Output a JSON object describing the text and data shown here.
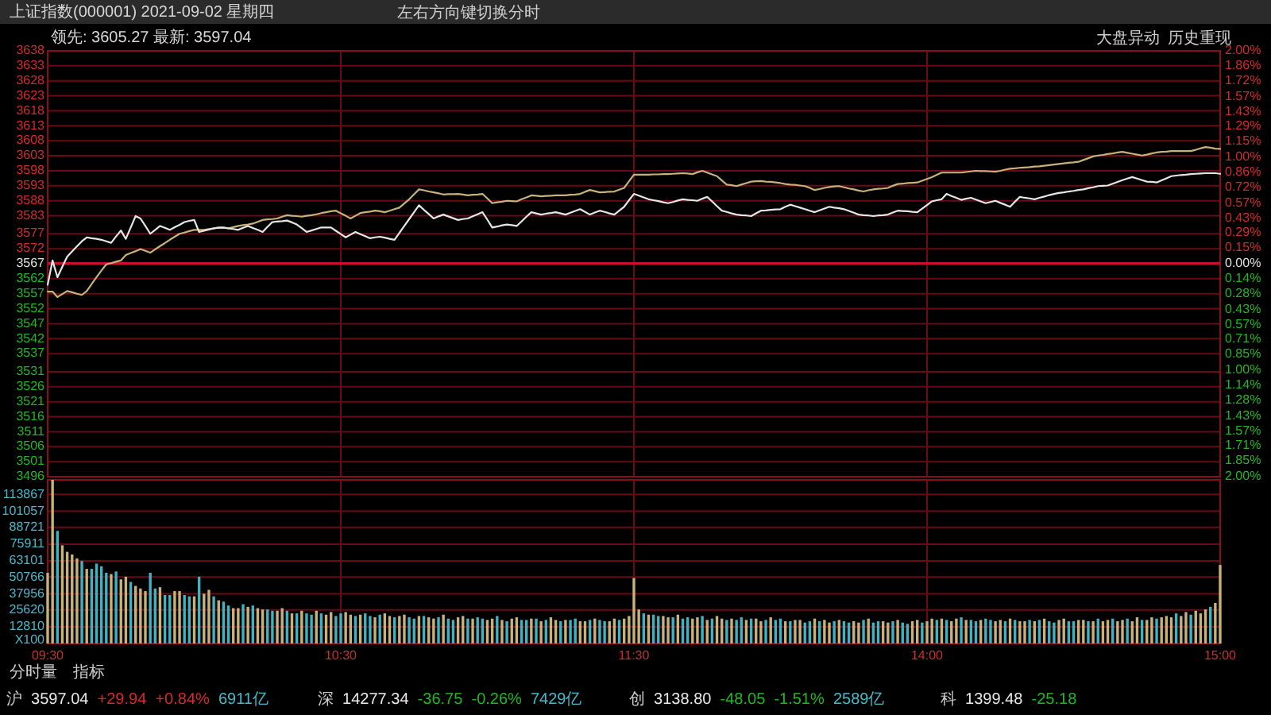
{
  "chart_data": [
    {
      "type": "line",
      "title": "上证指数(000001) 2021-09-02 星期四",
      "subtitle": "领先: 3605.27  最新: 3597.04",
      "categories": [
        null,
        null,
        null,
        null,
        null,
        null,
        null,
        null,
        null,
        null,
        null,
        null,
        null,
        null,
        null,
        null,
        null,
        null,
        null,
        null,
        null,
        null,
        null,
        null,
        null,
        null,
        null,
        null,
        null,
        null,
        null,
        null,
        null,
        null,
        null,
        null,
        null,
        null,
        null,
        null,
        null,
        null,
        null,
        null,
        null,
        null,
        null,
        null,
        null,
        null,
        null,
        null,
        null,
        null,
        null,
        null,
        null,
        null,
        null,
        null,
        null,
        null,
        null,
        null,
        null,
        null,
        null,
        null,
        null,
        null,
        null,
        null,
        null,
        null,
        null,
        null,
        null,
        null,
        null,
        null,
        null,
        null,
        null,
        null,
        null,
        null,
        null,
        null,
        null,
        null,
        null,
        null,
        null,
        null,
        null,
        null,
        null,
        null,
        null,
        null,
        null,
        null,
        null,
        null,
        null,
        null,
        null,
        null,
        null,
        null,
        null,
        null,
        null,
        null,
        null,
        null,
        null,
        null,
        null,
        null,
        null,
        null,
        null,
        null,
        null,
        null,
        null,
        null,
        null,
        null,
        null,
        null,
        null,
        null,
        null,
        null,
        null,
        null,
        null,
        null,
        null,
        null,
        null,
        null,
        null,
        null,
        null,
        null,
        null,
        null,
        null,
        null,
        null,
        null,
        null,
        null,
        null,
        null,
        null,
        null,
        null,
        null,
        null,
        null,
        null,
        null,
        null,
        null,
        null,
        null,
        null,
        null,
        null,
        null,
        null,
        null,
        null,
        null,
        null,
        null,
        null,
        null,
        null,
        null,
        null,
        null,
        null,
        null,
        null,
        null,
        null,
        null,
        null,
        null,
        null,
        null,
        null,
        null,
        null,
        null,
        null,
        null,
        null,
        null,
        null,
        null,
        null,
        null,
        null,
        null,
        null,
        null,
        null,
        null,
        null,
        null,
        null,
        null,
        null,
        null,
        null,
        null,
        null,
        null,
        null,
        null,
        null,
        null,
        null,
        null,
        null,
        null,
        null,
        null,
        null,
        null,
        null,
        null,
        null,
        null,
        null
      ],
      "ylim": [
        3496,
        3638
      ],
      "yticks": [
        3638,
        3633,
        3628,
        3623,
        3618,
        3613,
        3608,
        3603,
        3598,
        3593,
        3588,
        3583,
        3577,
        3572,
        3567,
        3562,
        3557,
        3552,
        3547,
        3542,
        3537,
        3531,
        3526,
        3521,
        3516,
        3511,
        3506,
        3501,
        3496
      ],
      "y2lim": [
        -2.0,
        2.0
      ],
      "y2ticks": [
        {
          "value": 2.0,
          "label": "2.00%"
        },
        {
          "value": 1.86,
          "label": "1.86%"
        },
        {
          "value": 1.72,
          "label": "1.72%"
        },
        {
          "value": 1.57,
          "label": "1.57%"
        },
        {
          "value": 1.43,
          "label": "1.43%"
        },
        {
          "value": 1.29,
          "label": "1.29%"
        },
        {
          "value": 1.15,
          "label": "1.15%"
        },
        {
          "value": 1.0,
          "label": "1.00%"
        },
        {
          "value": 0.86,
          "label": "0.86%"
        },
        {
          "value": 0.72,
          "label": "0.72%"
        },
        {
          "value": 0.57,
          "label": "0.57%"
        },
        {
          "value": 0.43,
          "label": "0.43%"
        },
        {
          "value": 0.29,
          "label": "0.29%"
        },
        {
          "value": 0.15,
          "label": "0.15%"
        },
        {
          "value": 0,
          "label": "0.00%"
        },
        {
          "value": -0.14,
          "label": "0.14%"
        },
        {
          "value": -0.28,
          "label": "0.28%"
        },
        {
          "value": -0.43,
          "label": "0.43%"
        },
        {
          "value": -0.57,
          "label": "0.57%"
        },
        {
          "value": -0.71,
          "label": "0.71%"
        },
        {
          "value": -0.85,
          "label": "0.85%"
        },
        {
          "value": -1.0,
          "label": "1.00%"
        },
        {
          "value": -1.14,
          "label": "1.14%"
        },
        {
          "value": -1.28,
          "label": "1.28%"
        },
        {
          "value": -1.43,
          "label": "1.43%"
        },
        {
          "value": -1.57,
          "label": "1.57%"
        },
        {
          "value": -1.71,
          "label": "1.71%"
        },
        {
          "value": -1.85,
          "label": "1.85%"
        },
        {
          "value": -2.0,
          "label": "2.00%"
        }
      ],
      "grid": true,
      "ref_lines": [
        {
          "axis": "y",
          "value": 3567.1,
          "color": "#c8102e"
        }
      ],
      "annotations": [
        "左右方向键切换分时",
        "大盘异动",
        "历史重现"
      ],
      "series": [
        {
          "color": "#c8b27a",
          "values": [
            3557.7,
            3557.7,
            3555.9,
            3556.9,
            3557.9,
            3557.5,
            3557.0,
            3556.6,
            3557.9,
            3560.2,
            3562.5,
            3564.7,
            3566.8,
            3567.2,
            3567.7,
            3568.1,
            3569.9,
            3570.6,
            3571.2,
            3571.9,
            3571.3,
            3570.7,
            3571.8,
            3572.9,
            3573.9,
            3575.0,
            3576.0,
            3577.0,
            3577.4,
            3577.9,
            3578.3,
            3578.3,
            3578.3,
            3578.6,
            3578.8,
            3579.1,
            3579.0,
            3578.8,
            3579.2,
            3579.6,
            3579.9,
            3580.1,
            3580.4,
            3581.0,
            3581.6,
            3581.8,
            3581.9,
            3582.1,
            3582.7,
            3583.2,
            3583.0,
            3582.9,
            3582.7,
            3583.0,
            3583.2,
            3583.5,
            3583.9,
            3584.2,
            3584.5,
            3584.7,
            3583.8,
            3583.0,
            3582.1,
            3583.0,
            3583.9,
            3584.2,
            3584.4,
            3584.7,
            3584.5,
            3584.2,
            3584.7,
            3585.2,
            3585.7,
            3587.1,
            3588.5,
            3590.2,
            3591.8,
            3591.5,
            3591.1,
            3590.8,
            3590.5,
            3590.1,
            3590.2,
            3590.2,
            3590.3,
            3590.1,
            3589.8,
            3590.0,
            3590.1,
            3590.3,
            3588.8,
            3587.2,
            3587.5,
            3587.7,
            3588.0,
            3587.9,
            3587.8,
            3588.5,
            3589.1,
            3589.8,
            3589.7,
            3589.5,
            3589.6,
            3589.7,
            3589.8,
            3589.8,
            3589.8,
            3590.0,
            3590.1,
            3590.3,
            3591.0,
            3591.6,
            3591.2,
            3590.8,
            3590.9,
            3591.0,
            3591.1,
            3591.7,
            3592.3,
            3594.5,
            3596.7,
            3596.7,
            3596.7,
            3596.7,
            3596.8,
            3596.8,
            3596.9,
            3596.9,
            3597.0,
            3597.1,
            3597.2,
            3597.1,
            3596.9,
            3597.5,
            3598.0,
            3597.4,
            3596.8,
            3596.2,
            3594.8,
            3593.4,
            3593.2,
            3592.9,
            3593.4,
            3593.9,
            3594.4,
            3594.5,
            3594.6,
            3594.4,
            3594.3,
            3594.1,
            3593.9,
            3593.6,
            3593.4,
            3593.3,
            3593.1,
            3592.9,
            3592.3,
            3591.6,
            3591.9,
            3592.3,
            3592.6,
            3592.8,
            3592.9,
            3592.5,
            3592.1,
            3591.8,
            3591.4,
            3591.1,
            3591.5,
            3591.8,
            3592.0,
            3592.1,
            3592.3,
            3593.0,
            3593.6,
            3593.7,
            3593.9,
            3594.0,
            3594.1,
            3594.7,
            3595.3,
            3595.9,
            3596.7,
            3597.4,
            3597.4,
            3597.4,
            3597.4,
            3597.4,
            3597.6,
            3597.8,
            3598.0,
            3597.9,
            3597.9,
            3597.8,
            3597.7,
            3598.0,
            3598.4,
            3598.7,
            3598.8,
            3599.0,
            3599.1,
            3599.2,
            3599.4,
            3599.5,
            3599.7,
            3599.9,
            3600.1,
            3600.3,
            3600.5,
            3600.7,
            3600.8,
            3601.0,
            3601.6,
            3602.2,
            3602.8,
            3603.1,
            3603.3,
            3603.6,
            3603.8,
            3604.1,
            3604.3,
            3604.0,
            3603.7,
            3603.4,
            3603.1,
            3603.4,
            3603.8,
            3604.1,
            3604.3,
            3604.4,
            3604.6,
            3604.6,
            3604.6,
            3604.6,
            3604.6,
            3605.0,
            3605.5,
            3605.9,
            3605.7,
            3605.4,
            3605.3
          ]
        },
        {
          "color": "#e6e6e6",
          "values": [
            3560.0,
            3568.1,
            3562.5,
            3566.0,
            3569.4,
            3571.1,
            3572.8,
            3574.5,
            3575.8,
            3575.5,
            3575.3,
            3575.0,
            3574.5,
            3574.0,
            3576.1,
            3578.1,
            3575.3,
            3579.1,
            3582.9,
            3582.1,
            3579.6,
            3577.0,
            3578.3,
            3579.6,
            3579.0,
            3578.3,
            3579.2,
            3580.0,
            3580.9,
            3581.3,
            3581.6,
            3577.6,
            3578.0,
            3578.4,
            3578.8,
            3579.0,
            3579.1,
            3578.8,
            3578.6,
            3578.3,
            3579.0,
            3579.6,
            3578.9,
            3578.3,
            3577.6,
            3579.3,
            3580.9,
            3581.1,
            3581.2,
            3581.4,
            3580.8,
            3580.1,
            3578.9,
            3577.6,
            3578.1,
            3578.6,
            3579.1,
            3579.1,
            3579.1,
            3578.0,
            3576.9,
            3575.8,
            3576.7,
            3577.6,
            3576.9,
            3576.2,
            3575.5,
            3575.8,
            3576.0,
            3575.7,
            3575.3,
            3575.0,
            3577.3,
            3579.6,
            3581.9,
            3584.2,
            3586.5,
            3585.0,
            3583.6,
            3582.1,
            3582.8,
            3583.4,
            3582.8,
            3582.2,
            3581.6,
            3581.9,
            3582.1,
            3582.8,
            3583.5,
            3584.2,
            3581.7,
            3579.1,
            3579.4,
            3579.8,
            3580.1,
            3579.9,
            3579.6,
            3581.1,
            3582.7,
            3584.2,
            3583.8,
            3583.4,
            3583.7,
            3583.9,
            3584.2,
            3583.8,
            3583.4,
            3584.0,
            3584.6,
            3585.2,
            3584.3,
            3583.4,
            3584.1,
            3584.7,
            3584.3,
            3583.8,
            3583.4,
            3584.7,
            3586.0,
            3588.2,
            3590.3,
            3589.7,
            3589.1,
            3588.5,
            3588.2,
            3587.9,
            3587.5,
            3587.2,
            3587.6,
            3588.1,
            3588.5,
            3588.3,
            3588.2,
            3588.0,
            3588.7,
            3589.3,
            3587.8,
            3586.2,
            3584.7,
            3584.3,
            3583.8,
            3583.4,
            3583.2,
            3583.1,
            3582.9,
            3583.8,
            3584.7,
            3584.8,
            3585.0,
            3585.1,
            3585.2,
            3586.0,
            3586.7,
            3586.2,
            3585.7,
            3585.2,
            3584.7,
            3584.2,
            3584.8,
            3585.4,
            3586.0,
            3585.7,
            3585.5,
            3585.2,
            3584.6,
            3584.0,
            3583.4,
            3583.2,
            3583.1,
            3582.9,
            3583.1,
            3583.2,
            3583.4,
            3584.1,
            3584.7,
            3584.6,
            3584.5,
            3584.3,
            3584.2,
            3585.4,
            3586.6,
            3587.8,
            3588.2,
            3588.5,
            3590.3,
            3589.6,
            3589.0,
            3588.3,
            3588.7,
            3589.0,
            3588.4,
            3587.8,
            3587.2,
            3587.6,
            3588.0,
            3587.3,
            3586.7,
            3586.0,
            3587.7,
            3589.3,
            3589.0,
            3588.8,
            3588.5,
            3589.0,
            3589.4,
            3589.9,
            3590.3,
            3590.6,
            3590.8,
            3591.1,
            3591.3,
            3591.6,
            3591.8,
            3592.2,
            3592.5,
            3592.9,
            3593.0,
            3593.1,
            3593.7,
            3594.3,
            3594.9,
            3595.4,
            3595.9,
            3595.4,
            3594.9,
            3594.4,
            3594.3,
            3594.1,
            3594.8,
            3595.5,
            3596.2,
            3596.4,
            3596.6,
            3596.7,
            3596.9,
            3597.0,
            3597.1,
            3597.2,
            3597.2,
            3597.2,
            3597.0
          ]
        }
      ]
    },
    {
      "type": "bar",
      "ylabel": "X100",
      "categories": [
        "09:30",
        null,
        null,
        null,
        null,
        null,
        null,
        null,
        null,
        null,
        null,
        null,
        null,
        null,
        null,
        null,
        null,
        null,
        null,
        null,
        null,
        null,
        null,
        null,
        null,
        null,
        null,
        null,
        null,
        null,
        null,
        null,
        null,
        null,
        null,
        null,
        null,
        null,
        null,
        null,
        null,
        null,
        null,
        null,
        null,
        null,
        null,
        null,
        null,
        null,
        null,
        null,
        null,
        null,
        null,
        null,
        null,
        null,
        null,
        null,
        "10:30",
        null,
        null,
        null,
        null,
        null,
        null,
        null,
        null,
        null,
        null,
        null,
        null,
        null,
        null,
        null,
        null,
        null,
        null,
        null,
        null,
        null,
        null,
        null,
        null,
        null,
        null,
        null,
        null,
        null,
        null,
        null,
        null,
        null,
        null,
        null,
        null,
        null,
        null,
        null,
        null,
        null,
        null,
        null,
        null,
        null,
        null,
        null,
        null,
        null,
        null,
        null,
        null,
        null,
        null,
        null,
        null,
        null,
        null,
        null,
        "11:30",
        null,
        null,
        null,
        null,
        null,
        null,
        null,
        null,
        null,
        null,
        null,
        null,
        null,
        null,
        null,
        null,
        null,
        null,
        null,
        null,
        null,
        null,
        null,
        null,
        null,
        null,
        null,
        null,
        null,
        null,
        null,
        null,
        null,
        null,
        null,
        null,
        null,
        null,
        null,
        null,
        null,
        null,
        null,
        null,
        null,
        null,
        null,
        null,
        null,
        null,
        null,
        null,
        null,
        null,
        null,
        null,
        null,
        null,
        null,
        "14:00",
        null,
        null,
        null,
        null,
        null,
        null,
        null,
        null,
        null,
        null,
        null,
        null,
        null,
        null,
        null,
        null,
        null,
        null,
        null,
        null,
        null,
        null,
        null,
        null,
        null,
        null,
        null,
        null,
        null,
        null,
        null,
        null,
        null,
        null,
        null,
        null,
        null,
        null,
        null,
        null,
        null,
        null,
        null,
        null,
        null,
        null,
        null,
        null,
        null,
        null,
        null,
        null,
        null,
        null,
        null,
        null,
        null,
        null,
        null,
        "15:00"
      ],
      "ylim": [
        0,
        125000
      ],
      "yticks": [
        12810,
        25620,
        37956,
        50766,
        63101,
        75911,
        88721,
        101057,
        113867
      ],
      "grid": true,
      "annotations": [
        "分时量",
        "指标",
        "沪 3597.04 +29.94 +0.84% 6911亿",
        "深 14277.34 -36.75 -0.26% 7429亿",
        "创 3138.80 -48.05 -1.51% 2589亿",
        "科 1399.48 -25.18"
      ],
      "values": [
        54000,
        125000,
        86000,
        75000,
        70000,
        68000,
        65000,
        63000,
        57000,
        57000,
        61000,
        59000,
        54000,
        53000,
        55000,
        49000,
        51000,
        47000,
        44000,
        42000,
        40000,
        54000,
        42000,
        43000,
        37000,
        37000,
        40000,
        40000,
        37000,
        36000,
        36000,
        51000,
        38000,
        41000,
        36000,
        33000,
        32000,
        29000,
        27000,
        27000,
        30000,
        28000,
        29000,
        27000,
        26000,
        26000,
        25000,
        25000,
        27000,
        25000,
        23000,
        23000,
        25000,
        23000,
        22000,
        25000,
        23000,
        22000,
        24000,
        21000,
        23000,
        24000,
        22000,
        21000,
        22000,
        23000,
        21000,
        20000,
        22000,
        23000,
        21000,
        20000,
        21000,
        22000,
        20000,
        19000,
        21000,
        21000,
        20000,
        19000,
        20000,
        22000,
        19000,
        18000,
        20000,
        21000,
        19000,
        19000,
        20000,
        19000,
        18000,
        19000,
        21000,
        18000,
        17000,
        19000,
        20000,
        18000,
        18000,
        19000,
        19000,
        17000,
        18000,
        20000,
        18000,
        17000,
        18000,
        18000,
        19000,
        17000,
        17000,
        18000,
        19000,
        18000,
        17000,
        17000,
        19000,
        18000,
        19000,
        21000,
        50000,
        26000,
        23000,
        22000,
        22000,
        21000,
        21000,
        20000,
        20000,
        22000,
        19000,
        20000,
        19000,
        20000,
        21000,
        18000,
        19000,
        21000,
        19000,
        18000,
        19000,
        18000,
        20000,
        18000,
        19000,
        19000,
        17000,
        18000,
        20000,
        18000,
        19000,
        17000,
        17000,
        18000,
        18000,
        16000,
        17000,
        19000,
        17000,
        18000,
        16000,
        17000,
        18000,
        17000,
        16000,
        17000,
        16000,
        18000,
        19000,
        16000,
        17000,
        17000,
        16000,
        17000,
        18000,
        16000,
        15000,
        17000,
        18000,
        16000,
        17000,
        19000,
        18000,
        19000,
        18000,
        17000,
        19000,
        20000,
        18000,
        18000,
        17000,
        18000,
        19000,
        18000,
        17000,
        18000,
        17000,
        19000,
        18000,
        17000,
        17000,
        18000,
        17000,
        18000,
        19000,
        17000,
        16000,
        18000,
        19000,
        17000,
        17000,
        18000,
        18000,
        17000,
        17000,
        19000,
        17000,
        18000,
        19000,
        17000,
        18000,
        19000,
        17000,
        20000,
        18000,
        18000,
        20000,
        19000,
        20000,
        21000,
        20000,
        23000,
        21000,
        24000,
        22000,
        25000,
        23000,
        26000,
        28000,
        31000,
        60000
      ],
      "colors": [
        "#c8b27a",
        "#c8b27a",
        "#3fb3c2",
        "#c8b27a",
        "#c8b27a",
        "#c8b27a",
        "#c8b27a",
        "#3fb3c2",
        "#c8b27a",
        "#3fb3c2",
        "#3fb3c2",
        "#3fb3c2",
        "#3fb3c2",
        "#c8b27a",
        "#3fb3c2",
        "#c8b27a",
        "#c8b27a",
        "#3fb3c2",
        "#c8b27a",
        "#c8b27a",
        "#c8b27a",
        "#3fb3c2",
        "#3fb3c2",
        "#c8b27a",
        "#3fb3c2",
        "#3fb3c2",
        "#c8b27a",
        "#c8b27a",
        "#3fb3c2",
        "#3fb3c2",
        "#c8b27a",
        "#3fb3c2",
        "#c8b27a",
        "#c8b27a",
        "#3fb3c2",
        "#c8b27a",
        "#3fb3c2",
        "#3fb3c2",
        "#c8b27a",
        "#c8b27a",
        "#3fb3c2",
        "#c8b27a",
        "#3fb3c2",
        "#c8b27a",
        "#c8b27a",
        "#3fb3c2",
        "#3fb3c2",
        "#c8b27a",
        "#c8b27a",
        "#3fb3c2",
        "#c8b27a",
        "#3fb3c2",
        "#c8b27a",
        "#3fb3c2",
        "#3fb3c2",
        "#c8b27a",
        "#3fb3c2",
        "#c8b27a",
        "#c8b27a",
        "#3fb3c2",
        "#3fb3c2",
        "#c8b27a",
        "#c8b27a",
        "#3fb3c2",
        "#c8b27a",
        "#3fb3c2",
        "#3fb3c2",
        "#c8b27a",
        "#3fb3c2",
        "#c8b27a",
        "#c8b27a",
        "#3fb3c2",
        "#c8b27a",
        "#c8b27a",
        "#3fb3c2",
        "#3fb3c2",
        "#c8b27a",
        "#3fb3c2",
        "#c8b27a",
        "#c8b27a",
        "#3fb3c2",
        "#c8b27a",
        "#3fb3c2",
        "#3fb3c2",
        "#c8b27a",
        "#c8b27a",
        "#3fb3c2",
        "#c8b27a",
        "#3fb3c2",
        "#3fb3c2",
        "#c8b27a",
        "#c8b27a",
        "#3fb3c2",
        "#c8b27a",
        "#3fb3c2",
        "#c8b27a",
        "#c8b27a",
        "#3fb3c2",
        "#3fb3c2",
        "#c8b27a",
        "#3fb3c2",
        "#c8b27a",
        "#3fb3c2",
        "#c8b27a",
        "#c8b27a",
        "#3fb3c2",
        "#c8b27a",
        "#3fb3c2",
        "#3fb3c2",
        "#c8b27a",
        "#c8b27a",
        "#3fb3c2",
        "#c8b27a",
        "#3fb3c2",
        "#3fb3c2",
        "#c8b27a",
        "#c8b27a",
        "#3fb3c2",
        "#c8b27a",
        "#c8b27a",
        "#c8b27a",
        "#c8b27a",
        "#3fb3c2",
        "#c8b27a",
        "#3fb3c2",
        "#3fb3c2",
        "#c8b27a",
        "#c8b27a",
        "#3fb3c2",
        "#c8b27a",
        "#3fb3c2",
        "#3fb3c2",
        "#c8b27a",
        "#c8b27a",
        "#3fb3c2",
        "#c8b27a",
        "#3fb3c2",
        "#c8b27a",
        "#c8b27a",
        "#3fb3c2",
        "#c8b27a",
        "#3fb3c2",
        "#3fb3c2",
        "#c8b27a",
        "#3fb3c2",
        "#c8b27a",
        "#c8b27a",
        "#3fb3c2",
        "#c8b27a",
        "#3fb3c2",
        "#3fb3c2",
        "#c8b27a",
        "#3fb3c2",
        "#c8b27a",
        "#c8b27a",
        "#3fb3c2",
        "#3fb3c2",
        "#c8b27a",
        "#3fb3c2",
        "#c8b27a",
        "#c8b27a",
        "#3fb3c2",
        "#c8b27a",
        "#3fb3c2",
        "#3fb3c2",
        "#c8b27a",
        "#c8b27a",
        "#3fb3c2",
        "#c8b27a",
        "#3fb3c2",
        "#3fb3c2",
        "#c8b27a",
        "#c8b27a",
        "#3fb3c2",
        "#c8b27a",
        "#3fb3c2",
        "#3fb3c2",
        "#c8b27a",
        "#c8b27a",
        "#3fb3c2",
        "#c8b27a",
        "#c8b27a",
        "#3fb3c2",
        "#c8b27a",
        "#3fb3c2",
        "#c8b27a",
        "#c8b27a",
        "#3fb3c2",
        "#c8b27a",
        "#3fb3c2",
        "#3fb3c2",
        "#c8b27a",
        "#3fb3c2",
        "#3fb3c2",
        "#c8b27a",
        "#c8b27a",
        "#3fb3c2",
        "#c8b27a",
        "#3fb3c2",
        "#c8b27a",
        "#c8b27a",
        "#3fb3c2",
        "#c8b27a",
        "#3fb3c2",
        "#c8b27a",
        "#3fb3c2",
        "#3fb3c2",
        "#c8b27a",
        "#c8b27a",
        "#3fb3c2",
        "#3fb3c2",
        "#c8b27a",
        "#c8b27a",
        "#3fb3c2",
        "#c8b27a",
        "#3fb3c2",
        "#c8b27a",
        "#c8b27a",
        "#3fb3c2",
        "#c8b27a",
        "#c8b27a",
        "#3fb3c2",
        "#c8b27a",
        "#c8b27a",
        "#3fb3c2",
        "#c8b27a",
        "#c8b27a",
        "#3fb3c2",
        "#c8b27a",
        "#c8b27a",
        "#c8b27a",
        "#3fb3c2",
        "#c8b27a",
        "#c8b27a",
        "#3fb3c2",
        "#c8b27a",
        "#c8b27a",
        "#c8b27a",
        "#3fb3c2",
        "#c8b27a",
        "#c8b27a"
      ]
    }
  ]
}
